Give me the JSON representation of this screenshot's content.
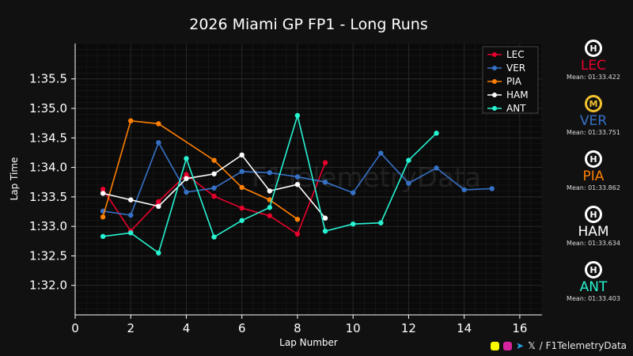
{
  "colors": {
    "background": "#111111",
    "plot_bg": "#0a0a0a",
    "grid": "#2a2a2a",
    "grid_minor": "#1c1c1c"
  },
  "chart_data": {
    "type": "line",
    "title": "2026 Miami GP FP1 - Long Runs",
    "xlabel": "Lap Number",
    "ylabel": "Lap Time",
    "xlim": [
      0,
      16.8
    ],
    "ylim": [
      91.5,
      96.1
    ],
    "xticks": [
      0,
      2,
      4,
      6,
      8,
      10,
      12,
      14,
      16
    ],
    "yticks": [
      {
        "value": 92.0,
        "label": "1:32.0"
      },
      {
        "value": 92.5,
        "label": "1:32.5"
      },
      {
        "value": 93.0,
        "label": "1:33.0"
      },
      {
        "value": 93.5,
        "label": "1:33.5"
      },
      {
        "value": 94.0,
        "label": "1:34.0"
      },
      {
        "value": 94.5,
        "label": "1:34.5"
      },
      {
        "value": 95.0,
        "label": "1:35.0"
      },
      {
        "value": 95.5,
        "label": "1:35.5"
      }
    ],
    "grid": true,
    "legend_position": "top-right",
    "watermark": "F1TelemetryData",
    "series": [
      {
        "name": "LEC",
        "color": "#e8002d",
        "x": [
          1,
          2,
          3,
          4,
          5,
          6,
          7,
          8,
          9
        ],
        "y": [
          93.63,
          92.92,
          93.42,
          93.88,
          93.51,
          93.31,
          93.18,
          92.87,
          94.08
        ]
      },
      {
        "name": "VER",
        "color": "#3671c6",
        "x": [
          1,
          2,
          3,
          4,
          5,
          6,
          7,
          8,
          9,
          10,
          11,
          12,
          13,
          14,
          15
        ],
        "y": [
          93.26,
          93.19,
          94.42,
          93.58,
          93.65,
          93.93,
          93.91,
          93.84,
          93.75,
          93.57,
          94.24,
          93.73,
          93.99,
          93.62,
          93.64
        ]
      },
      {
        "name": "PIA",
        "color": "#ff8000",
        "x": [
          1,
          2,
          3,
          5,
          6,
          7,
          8
        ],
        "y": [
          93.16,
          94.79,
          94.74,
          94.12,
          93.66,
          93.45,
          93.12
        ]
      },
      {
        "name": "HAM",
        "color": "#ffffff",
        "x": [
          1,
          2,
          3,
          4,
          5,
          6,
          7,
          8,
          9
        ],
        "y": [
          93.56,
          93.45,
          93.34,
          93.81,
          93.89,
          94.21,
          93.6,
          93.71,
          93.14
        ]
      },
      {
        "name": "ANT",
        "color": "#27f4d2",
        "x": [
          1,
          2,
          3,
          4,
          5,
          6,
          7,
          8,
          9,
          10,
          11,
          12,
          13
        ],
        "y": [
          92.83,
          92.89,
          92.55,
          94.15,
          92.82,
          93.1,
          93.32,
          94.88,
          92.92,
          93.04,
          93.06,
          94.12,
          94.58
        ]
      }
    ]
  },
  "drivers": [
    {
      "code": "LEC",
      "color": "#e8002d",
      "tyre": "H",
      "tyre_color": "#ffffff",
      "mean_label": "Mean:",
      "mean": "01:33.422"
    },
    {
      "code": "VER",
      "color": "#3671c6",
      "tyre": "M",
      "tyre_color": "#f2c12e",
      "mean_label": "Mean:",
      "mean": "01:33.751"
    },
    {
      "code": "PIA",
      "color": "#ff8000",
      "tyre": "H",
      "tyre_color": "#ffffff",
      "mean_label": "Mean:",
      "mean": "01:33.862"
    },
    {
      "code": "HAM",
      "color": "#ffffff",
      "tyre": "H",
      "tyre_color": "#ffffff",
      "mean_label": "Mean:",
      "mean": "01:33.634"
    },
    {
      "code": "ANT",
      "color": "#27f4d2",
      "tyre": "H",
      "tyre_color": "#ffffff",
      "mean_label": "Mean:",
      "mean": "01:33.403"
    }
  ],
  "footer": {
    "handle": "/ F1TelemetryData",
    "icons": [
      {
        "name": "snapchat-icon",
        "color": "#fffc00"
      },
      {
        "name": "instagram-icon",
        "color": "#d6249f"
      },
      {
        "name": "telegram-icon",
        "color": "#2aa3e0",
        "glyph": "➤"
      },
      {
        "name": "x-icon",
        "color": "#ffffff",
        "glyph": "𝕏"
      }
    ]
  }
}
